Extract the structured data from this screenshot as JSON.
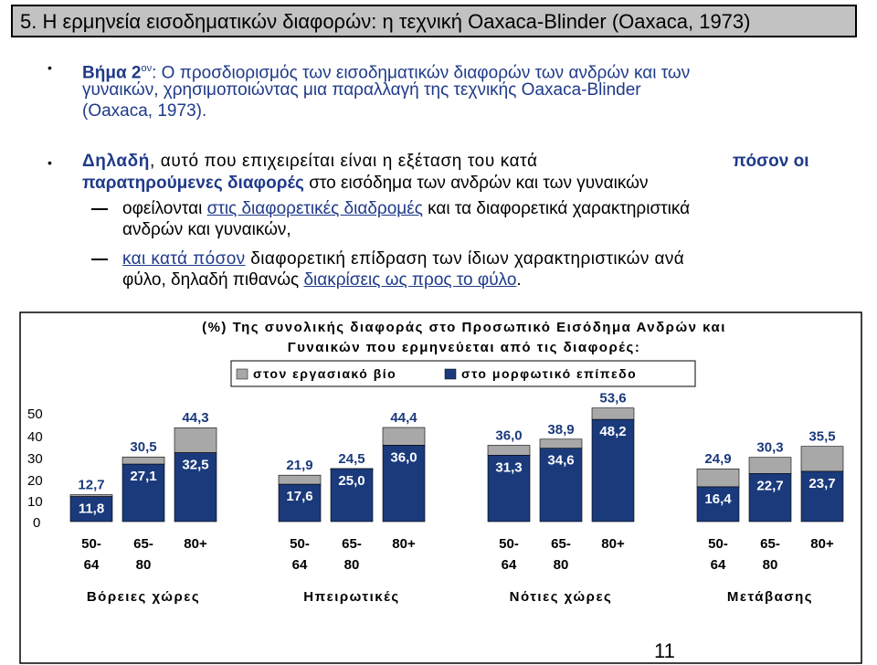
{
  "slide": {
    "title": "5. Η ερμηνεία  εισοδηματικών διαφορών:  η τεχνική Oaxaca-Blinder (Oaxaca, 1973)",
    "page_number": "11"
  },
  "bullet1": {
    "step_label": "Βήμα 2",
    "step_sup": "ον",
    "line1_rest": ": Ο προσδιορισμός των εισοδηματικών διαφορών των ανδρών και των",
    "line2": "γυναικών, χρησιμοποιώντας μια παραλλαγή της τεχνικής Oaxaca-Blinder",
    "line3": "(Oaxaca, 1973)."
  },
  "bullet2": {
    "lead": "Δηλαδή",
    "line1_rest": ", αυτό που επιχειρείται είναι η εξέταση του κατά",
    "highlight": "πόσον οι",
    "line2_bold": "παρατηρούμενες διαφορές",
    "line2_rest": " στο εισόδημα των ανδρών και των γυναικών",
    "sub1_start": "οφείλονται ",
    "sub1_link": "στις διαφορετικές διαδρομές",
    "sub1_rest": " και τα διαφορετικά χαρακτηριστικά",
    "sub1_line2": "ανδρών και γυναικών,",
    "sub2_link": "και κατά πόσον",
    "sub2_rest": " διαφορετική επίδραση των ίδιων χαρακτηριστικών ανά",
    "sub2_line2_start": "φύλο, δηλαδή πιθανώς ",
    "sub2_line2_link": "διακρίσεις ως προς το φύλο",
    "sub2_line2_end": "."
  },
  "chart_data": {
    "type": "bar",
    "stacked": true,
    "title_line1": "(%) Της συνολικής διαφοράς στο Προσωπικό Εισόδημα Ανδρών και",
    "title_line2": "Γυναικών που ερμηνεύεται από τις διαφορές:",
    "legend": [
      {
        "name": "στον εργασιακό βίο",
        "color": "#a8a8a8"
      },
      {
        "name": "στο μορφωτικό επίπεδο",
        "color": "#1a3a7c"
      }
    ],
    "y_ticks": [
      "50",
      "40",
      "30",
      "20",
      "10",
      "0"
    ],
    "ylim": [
      0,
      55
    ],
    "groups": [
      {
        "name": "Βόρειες χώρες",
        "bars": [
          {
            "label": [
              "50-",
              "64"
            ],
            "total": 12.7,
            "bottom": 11.8
          },
          {
            "label": [
              "65-",
              "80"
            ],
            "total": 30.5,
            "bottom": 27.1
          },
          {
            "label": [
              "80+",
              ""
            ],
            "total": 44.3,
            "bottom": 32.5
          }
        ]
      },
      {
        "name": "Ηπειρωτικές",
        "bars": [
          {
            "label": [
              "50-",
              "64"
            ],
            "total": 21.9,
            "bottom": 17.6
          },
          {
            "label": [
              "65-",
              "80"
            ],
            "total": 24.5,
            "bottom": 25.0
          },
          {
            "label": [
              "80+",
              ""
            ],
            "total": 44.4,
            "bottom": 36.0
          }
        ]
      },
      {
        "name": "Νότιες χώρες",
        "bars": [
          {
            "label": [
              "50-",
              "64"
            ],
            "total": 36.0,
            "bottom": 31.3
          },
          {
            "label": [
              "65-",
              "80"
            ],
            "total": 38.9,
            "bottom": 34.6
          },
          {
            "label": [
              "80+",
              ""
            ],
            "total": 53.6,
            "bottom": 48.2
          }
        ]
      },
      {
        "name": "Μετάβασης",
        "bars": [
          {
            "label": [
              "50-",
              "64"
            ],
            "total": 24.9,
            "bottom": 16.4
          },
          {
            "label": [
              "65-",
              "80"
            ],
            "total": 30.3,
            "bottom": 22.7
          },
          {
            "label": [
              "80+",
              ""
            ],
            "total": 35.5,
            "bottom": 23.7
          }
        ]
      }
    ],
    "total_labels": [
      "12,7",
      "30,5",
      "44,3",
      "21,9",
      "24,5",
      "44,4",
      "36,0",
      "38,9",
      "53,6",
      "24,9",
      "30,3",
      "35,5"
    ],
    "bottom_labels": [
      "11,8",
      "27,1",
      "32,5",
      "17,6",
      "25,0",
      "36,0",
      "31,3",
      "34,6",
      "48,2",
      "16,4",
      "22,7",
      "23,7"
    ]
  }
}
